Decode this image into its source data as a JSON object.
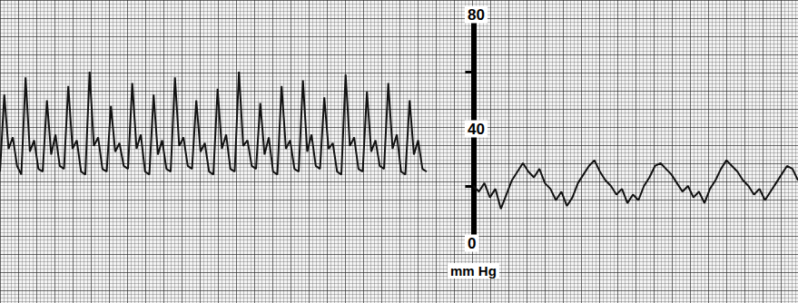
{
  "chart_data": [
    {
      "type": "line",
      "color": "#111111",
      "grid": true,
      "tick_labels": false,
      "ylim": [
        0,
        80
      ],
      "yticks": [
        0,
        40,
        80
      ],
      "x": [
        0,
        1,
        2,
        3,
        4,
        5,
        6,
        7,
        8,
        9,
        10,
        11,
        12,
        13,
        14,
        15,
        16,
        17,
        18,
        19,
        20,
        21,
        22,
        23,
        24,
        25,
        26,
        27,
        28,
        29,
        30,
        31,
        32,
        33,
        34,
        35,
        36,
        37,
        38,
        39,
        40,
        41,
        42,
        43,
        44,
        45,
        46,
        47,
        48,
        49,
        50,
        51,
        52,
        53,
        54,
        55,
        56,
        57,
        58,
        59,
        60,
        61,
        62,
        63,
        64,
        65,
        66,
        67,
        68,
        69,
        70,
        71,
        72,
        73,
        74,
        75,
        76,
        77,
        78,
        79,
        80,
        81,
        82,
        83,
        84,
        85,
        86,
        87,
        88,
        89,
        90,
        91,
        92,
        93,
        94,
        95,
        96,
        97,
        98,
        99,
        100
      ],
      "values": [
        25,
        52,
        33,
        37,
        27,
        24,
        58,
        32,
        36,
        26,
        25,
        50,
        31,
        38,
        27,
        26,
        55,
        33,
        36,
        25,
        24,
        60,
        34,
        37,
        26,
        25,
        48,
        32,
        35,
        27,
        26,
        56,
        33,
        38,
        25,
        24,
        52,
        31,
        36,
        26,
        25,
        58,
        34,
        37,
        27,
        26,
        50,
        32,
        35,
        25,
        24,
        54,
        33,
        38,
        26,
        25,
        60,
        34,
        36,
        27,
        26,
        49,
        31,
        37,
        25,
        24,
        55,
        33,
        36,
        26,
        25,
        57,
        32,
        38,
        27,
        26,
        51,
        33,
        35,
        25,
        24,
        59,
        34,
        37,
        26,
        25,
        53,
        32,
        36,
        27,
        26,
        56,
        33,
        38,
        25,
        24,
        50,
        31,
        36,
        26,
        25
      ]
    },
    {
      "type": "line",
      "color": "#111111",
      "grid": true,
      "tick_labels": "y",
      "y_label": "mm Hg",
      "ylim": [
        0,
        80
      ],
      "yticks": [
        0,
        40,
        80
      ],
      "x": [
        0,
        1,
        2,
        3,
        4,
        5,
        6,
        7,
        8,
        9,
        10,
        11,
        12,
        13,
        14,
        15,
        16,
        17,
        18,
        19,
        20,
        21,
        22,
        23,
        24,
        25,
        26,
        27,
        28,
        29,
        30,
        31,
        32,
        33,
        34,
        35,
        36,
        37,
        38,
        39,
        40,
        41,
        42,
        43,
        44,
        45,
        46,
        47,
        48,
        49,
        50,
        51,
        52,
        53,
        54,
        55,
        56,
        57,
        58,
        59
      ],
      "values": [
        20,
        18,
        21,
        16,
        19,
        12,
        17,
        22,
        25,
        28,
        25,
        23,
        26,
        21,
        19,
        15,
        18,
        13,
        16,
        21,
        24,
        27,
        29,
        25,
        22,
        20,
        17,
        19,
        14,
        17,
        15,
        20,
        23,
        27,
        28,
        26,
        24,
        21,
        18,
        20,
        16,
        18,
        14,
        19,
        22,
        26,
        29,
        27,
        25,
        22,
        20,
        17,
        19,
        15,
        18,
        21,
        24,
        27,
        26,
        22
      ]
    }
  ]
}
